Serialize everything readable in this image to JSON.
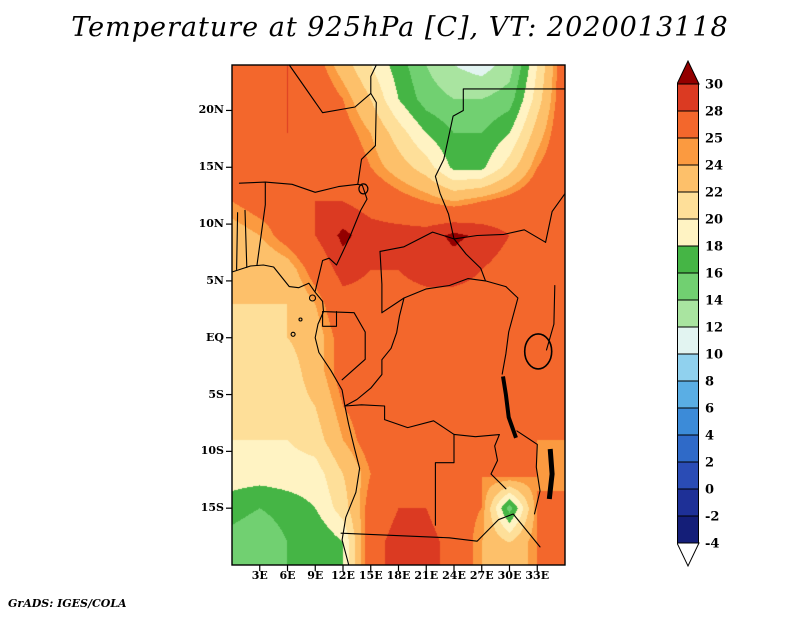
{
  "title": "Temperature at 925hPa [C], VT: 2020013118",
  "footer": "GrADS: IGES/COLA",
  "colors": {
    "background": "#ffffff",
    "border": "#000000"
  },
  "chart_data": {
    "type": "heatmap",
    "title": "Temperature at 925hPa [C], VT: 2020013118",
    "variable": "Temperature",
    "pressure_level": "925hPa",
    "units": "C",
    "valid_time": "2020013118",
    "lon_range": [
      0,
      36
    ],
    "lat_range": [
      -20,
      24
    ],
    "xticks": [
      {
        "label": "3E",
        "lon": 3
      },
      {
        "label": "6E",
        "lon": 6
      },
      {
        "label": "9E",
        "lon": 9
      },
      {
        "label": "12E",
        "lon": 12
      },
      {
        "label": "15E",
        "lon": 15
      },
      {
        "label": "18E",
        "lon": 18
      },
      {
        "label": "21E",
        "lon": 21
      },
      {
        "label": "24E",
        "lon": 24
      },
      {
        "label": "27E",
        "lon": 27
      },
      {
        "label": "30E",
        "lon": 30
      },
      {
        "label": "33E",
        "lon": 33
      }
    ],
    "yticks": [
      {
        "label": "20N",
        "lat": 20
      },
      {
        "label": "15N",
        "lat": 15
      },
      {
        "label": "10N",
        "lat": 10
      },
      {
        "label": "5N",
        "lat": 5
      },
      {
        "label": "EQ",
        "lat": 0
      },
      {
        "label": "5S",
        "lat": -5
      },
      {
        "label": "10S",
        "lat": -10
      },
      {
        "label": "15S",
        "lat": -15
      }
    ],
    "levels": [
      -4,
      -2,
      0,
      2,
      4,
      6,
      8,
      10,
      12,
      14,
      16,
      18,
      20,
      22,
      24,
      25,
      28,
      30
    ],
    "palette": [
      "#ffffff",
      "#141e78",
      "#1e3097",
      "#2a4cb5",
      "#2f6ac8",
      "#3c8bd8",
      "#5aaee4",
      "#90d1ee",
      "#e2f4f1",
      "#a9e4a0",
      "#71d071",
      "#45b545",
      "#fff3c3",
      "#fedf99",
      "#fdc06a",
      "#fb9a40",
      "#f3672c",
      "#db3a22",
      "#930000"
    ],
    "colorbar_labels": [
      "30",
      "28",
      "25",
      "24",
      "22",
      "20",
      "18",
      "16",
      "14",
      "12",
      "10",
      "8",
      "6",
      "4",
      "2",
      "0",
      "-2",
      "-4"
    ],
    "grid": {
      "lons": [
        0,
        3,
        6,
        9,
        12,
        15,
        18,
        21,
        24,
        27,
        30,
        33,
        36
      ],
      "lats": [
        24,
        21,
        18,
        15,
        12,
        9,
        6,
        3,
        0,
        -3,
        -6,
        -9,
        -12,
        -15,
        -18
      ],
      "values": [
        [
          26,
          27,
          28,
          26,
          23,
          20,
          17,
          14,
          12,
          11,
          13,
          20,
          27
        ],
        [
          27,
          28,
          28,
          27,
          25,
          22,
          18,
          15,
          14,
          14,
          15,
          21,
          27
        ],
        [
          26,
          27,
          28,
          28,
          26,
          24,
          21,
          18,
          16,
          16,
          18,
          23,
          27
        ],
        [
          25,
          26,
          27,
          28,
          27,
          25,
          23,
          21,
          17.5,
          17.5,
          21,
          25,
          27
        ],
        [
          25,
          26,
          26,
          28,
          28,
          27,
          26,
          25,
          24,
          25,
          26,
          27,
          26
        ],
        [
          23,
          24,
          26,
          28,
          30.5,
          29,
          29,
          29,
          30.5,
          29.5,
          28,
          27,
          26
        ],
        [
          22,
          22,
          23,
          26,
          29,
          28,
          28,
          29,
          29,
          28,
          27,
          26,
          26
        ],
        [
          22,
          22,
          22,
          24,
          27,
          27,
          27,
          27,
          27,
          27,
          26,
          25,
          25
        ],
        [
          21,
          21,
          22,
          23,
          26,
          26,
          27,
          27,
          27,
          26,
          26,
          25,
          26
        ],
        [
          21,
          21,
          21,
          23,
          26,
          26,
          27,
          27,
          27,
          26,
          25,
          26,
          26
        ],
        [
          21,
          21,
          21,
          22,
          25,
          26,
          27,
          27,
          26,
          26,
          26,
          26,
          25
        ],
        [
          20,
          20,
          20,
          21,
          24,
          26,
          27,
          27,
          26,
          26,
          25,
          25,
          25
        ],
        [
          19,
          19,
          19,
          19,
          22,
          25,
          26,
          26,
          26,
          25,
          26,
          25,
          24
        ],
        [
          17,
          16,
          17,
          18,
          21,
          26,
          28,
          28,
          26,
          25,
          15,
          25,
          26
        ],
        [
          15,
          14,
          16,
          16,
          18,
          27,
          29,
          29,
          27,
          24,
          22,
          25,
          26
        ]
      ]
    }
  }
}
